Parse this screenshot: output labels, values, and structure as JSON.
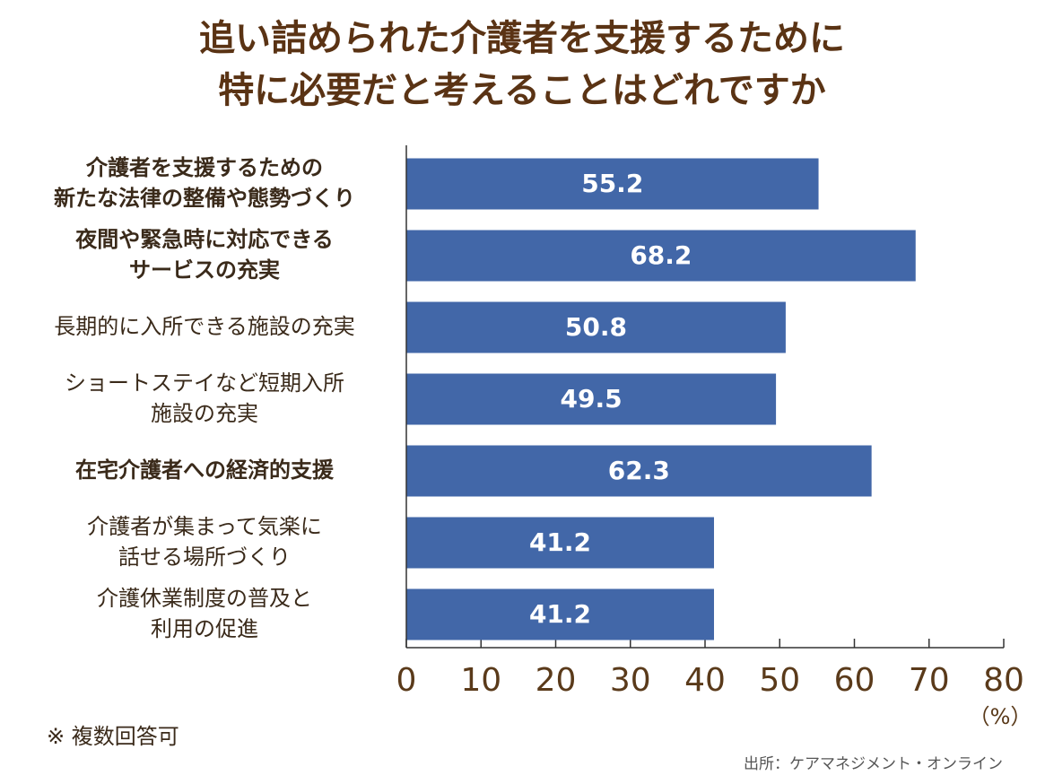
{
  "chart_data": {
    "type": "bar",
    "orientation": "horizontal",
    "title": [
      "追い詰められた介護者を支援するために",
      "特に必要だと考えることはどれですか"
    ],
    "categories": [
      [
        "介護者を支援するための",
        "新たな法律の整備や態勢づくり"
      ],
      [
        "夜間や緊急時に対応できる",
        "サービスの充実"
      ],
      [
        "長期的に入所できる施設の充実"
      ],
      [
        "ショートステイなど短期入所",
        "施設の充実"
      ],
      [
        "在宅介護者への経済的支援"
      ],
      [
        "介護者が集まって気楽に",
        "話せる場所づくり"
      ],
      [
        "介護休業制度の普及と",
        "利用の促進"
      ]
    ],
    "bold": [
      true,
      true,
      false,
      false,
      true,
      false,
      false
    ],
    "values": [
      55.2,
      68.2,
      50.8,
      49.5,
      62.3,
      41.2,
      41.2
    ],
    "value_labels": [
      "55.2",
      "68.2",
      "50.8",
      "49.5",
      "62.3",
      "41.2",
      "41.2"
    ],
    "color": "#4267a8",
    "xlim": [
      0,
      80
    ],
    "xticks": [
      0,
      10,
      20,
      30,
      40,
      50,
      60,
      70,
      80
    ],
    "unit_label": "（%）",
    "note": "※ 複数回答可",
    "source": "出所：ケアマネジメント・オンライン"
  }
}
